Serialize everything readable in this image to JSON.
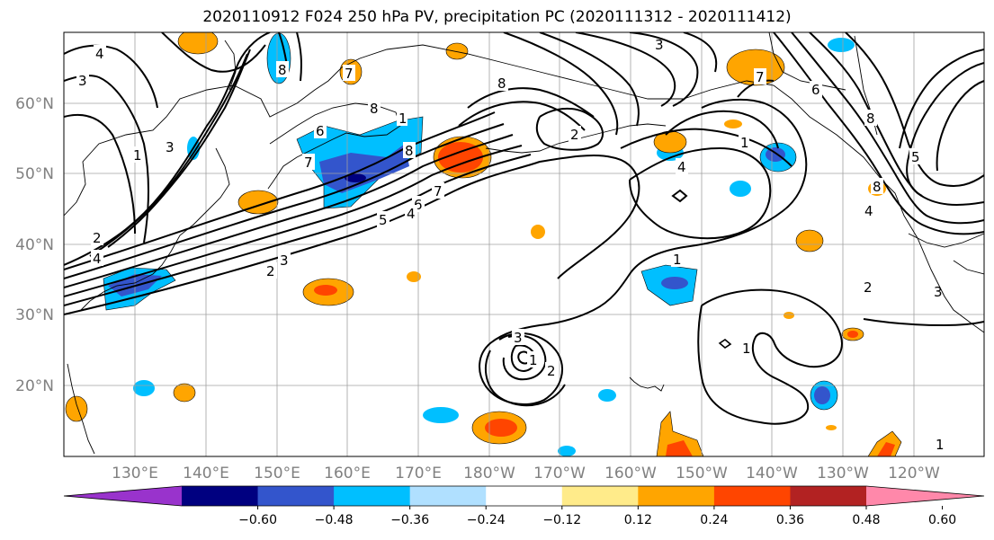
{
  "title": "2020110912 F024 250 hPa PV, precipitation PC (2020111312 - 2020111412)",
  "lat_labels": [
    "60°N",
    "50°N",
    "40°N",
    "30°N",
    "20°N"
  ],
  "lon_labels": [
    "130°E",
    "140°E",
    "150°E",
    "160°E",
    "170°E",
    "180°W",
    "170°W",
    "160°W",
    "150°W",
    "140°W",
    "130°W",
    "120°W"
  ],
  "colorbar": {
    "tick_labels": [
      "−0.60",
      "−0.48",
      "−0.36",
      "−0.24",
      "−0.12",
      "0.12",
      "0.24",
      "0.36",
      "0.48",
      "0.60"
    ],
    "colors": [
      "#9933cc",
      "#000080",
      "#3355cc",
      "#00bfff",
      "#b0e0ff",
      "#ffffff",
      "#ffeb8a",
      "#ffa500",
      "#ff4500",
      "#b22222",
      "#ff88aa"
    ]
  },
  "contour_labels": [
    "4",
    "3",
    "1",
    "3",
    "2",
    "4",
    "3",
    "2",
    "7",
    "8",
    "8",
    "6",
    "1",
    "7",
    "8",
    "7",
    "6",
    "5",
    "4",
    "3",
    "2",
    "8",
    "3",
    "2",
    "1",
    "4",
    "1",
    "8",
    "6",
    "7",
    "8",
    "5",
    "4",
    "1",
    "3",
    "2",
    "1",
    "1"
  ]
}
